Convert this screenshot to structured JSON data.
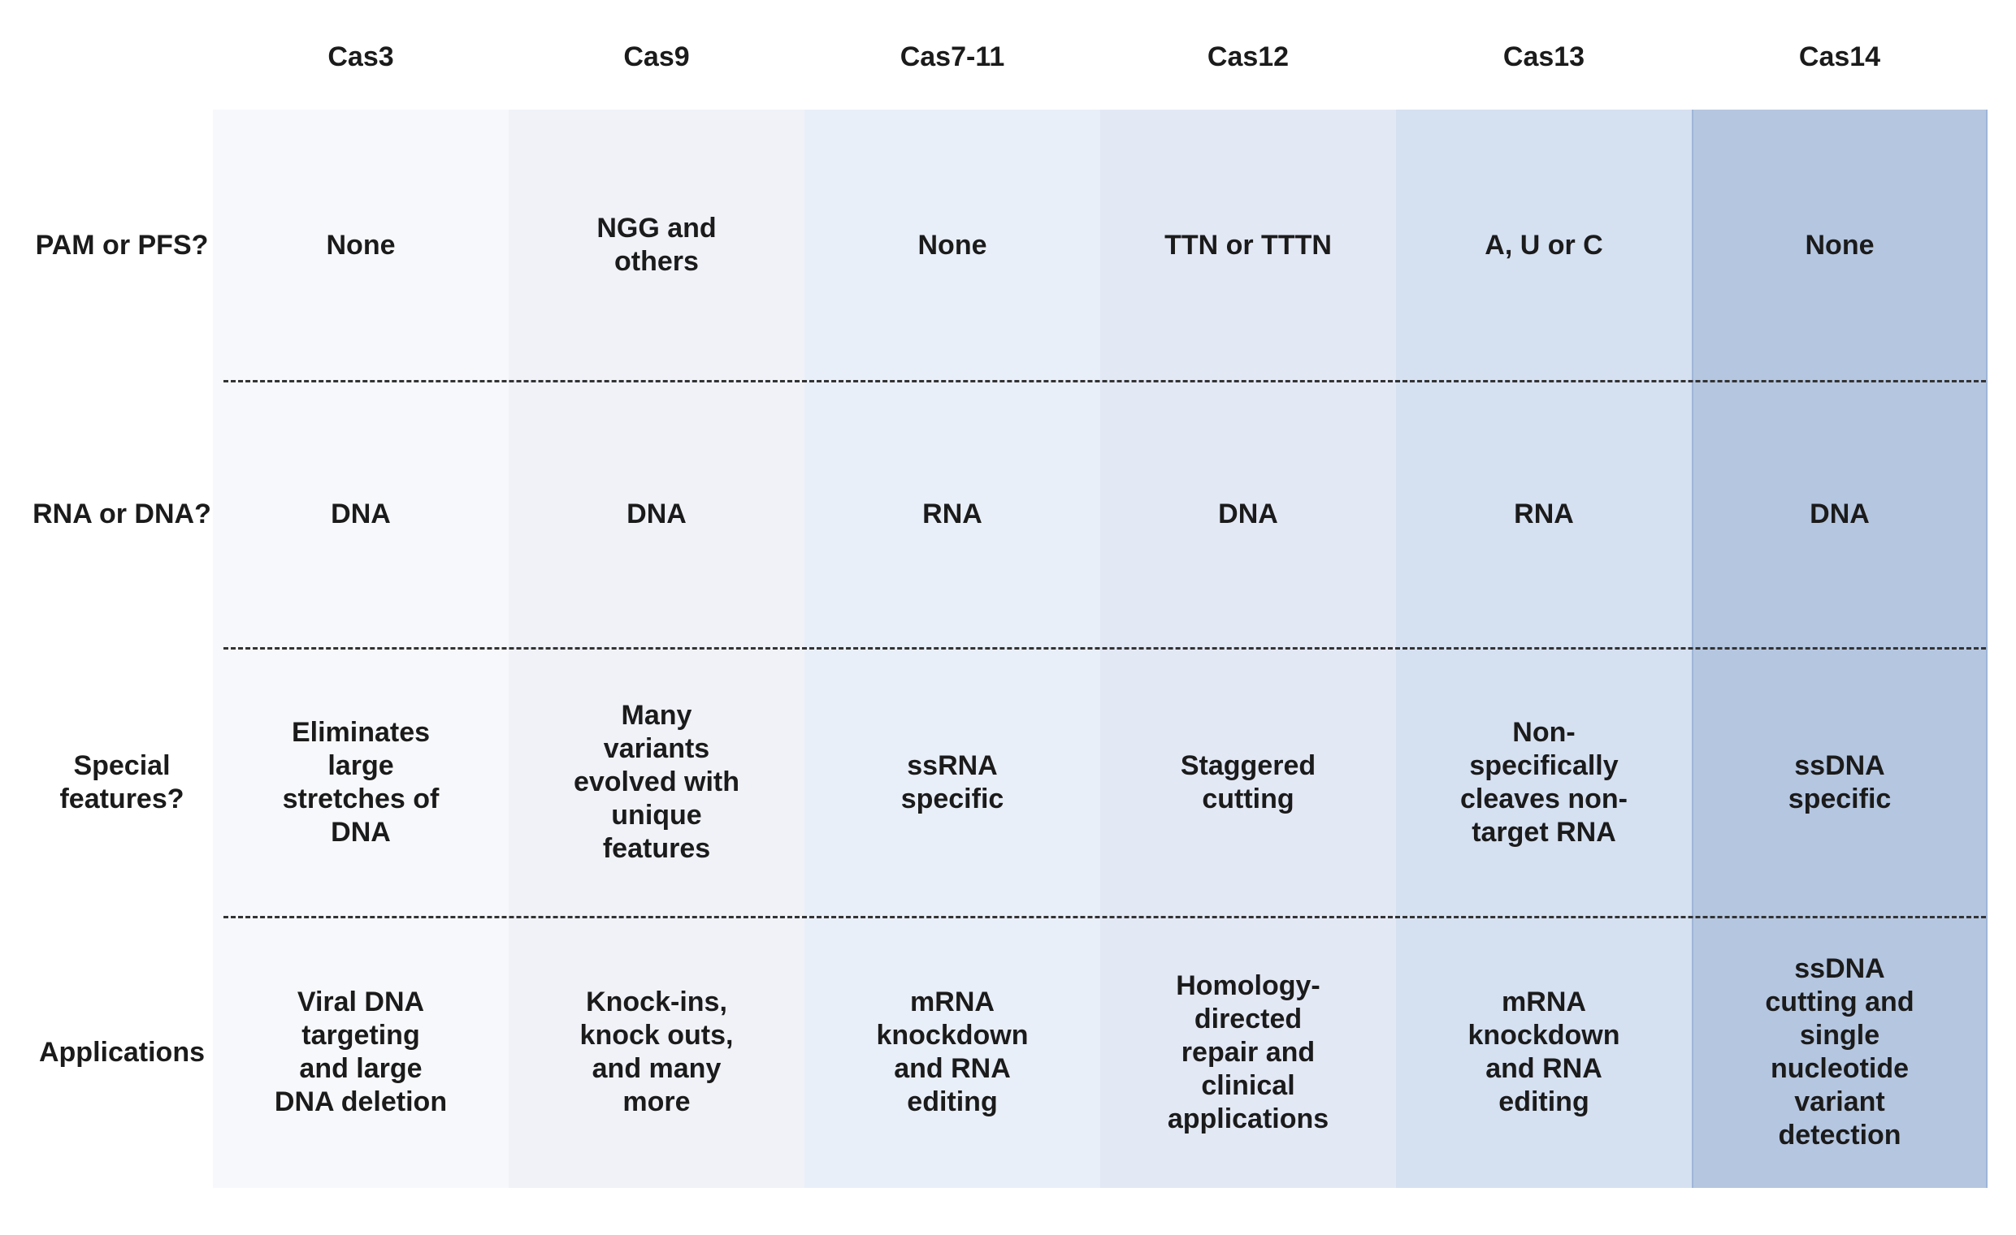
{
  "table": {
    "columns": [
      "Cas3",
      "Cas9",
      "Cas7-11",
      "Cas12",
      "Cas13",
      "Cas14"
    ],
    "rows": [
      {
        "label": "PAM or PFS?",
        "cells": [
          "None",
          "NGG and others",
          "None",
          "TTN or TTTN",
          "A, U or C",
          "None"
        ]
      },
      {
        "label": "RNA or DNA?",
        "cells": [
          "DNA",
          "DNA",
          "RNA",
          "DNA",
          "RNA",
          "DNA"
        ]
      },
      {
        "label": "Special features?",
        "cells": [
          "Eliminates large stretches of DNA",
          "Many variants evolved with unique features",
          "ssRNA specific",
          "Staggered cutting",
          "Non-specifically cleaves non-target RNA",
          "ssDNA specific"
        ]
      },
      {
        "label": "Applications",
        "cells": [
          "Viral DNA targeting and large DNA deletion",
          "Knock-ins, knock outs, and many more",
          "mRNA knockdown and RNA editing",
          "Homology-directed repair and clinical applications",
          "mRNA knockdown and RNA editing",
          "ssDNA cutting and single nucleotide variant detection"
        ]
      }
    ]
  }
}
